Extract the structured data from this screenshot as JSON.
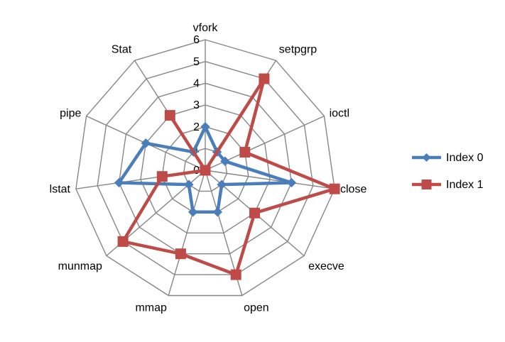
{
  "chart_data": {
    "type": "radar",
    "categories": [
      "vfork",
      "setpgrp",
      "ioctl",
      "close",
      "execve",
      "open",
      "mmap",
      "munmap",
      "lstat",
      "pipe",
      "Stat"
    ],
    "series": [
      {
        "name": "Index 0",
        "values": [
          2,
          1,
          1,
          4,
          1,
          2,
          2,
          1,
          4,
          3,
          1
        ],
        "color": "#4a7ebb",
        "marker": "diamond"
      },
      {
        "name": "Index 1",
        "values": [
          0,
          5,
          2,
          6,
          3,
          5,
          4,
          5,
          2,
          0,
          3
        ],
        "color": "#be4b48",
        "marker": "square"
      }
    ],
    "rlim": [
      0,
      6
    ],
    "ticks": [
      0,
      1,
      2,
      3,
      4,
      5,
      6
    ],
    "grid": true,
    "legend": "right"
  }
}
